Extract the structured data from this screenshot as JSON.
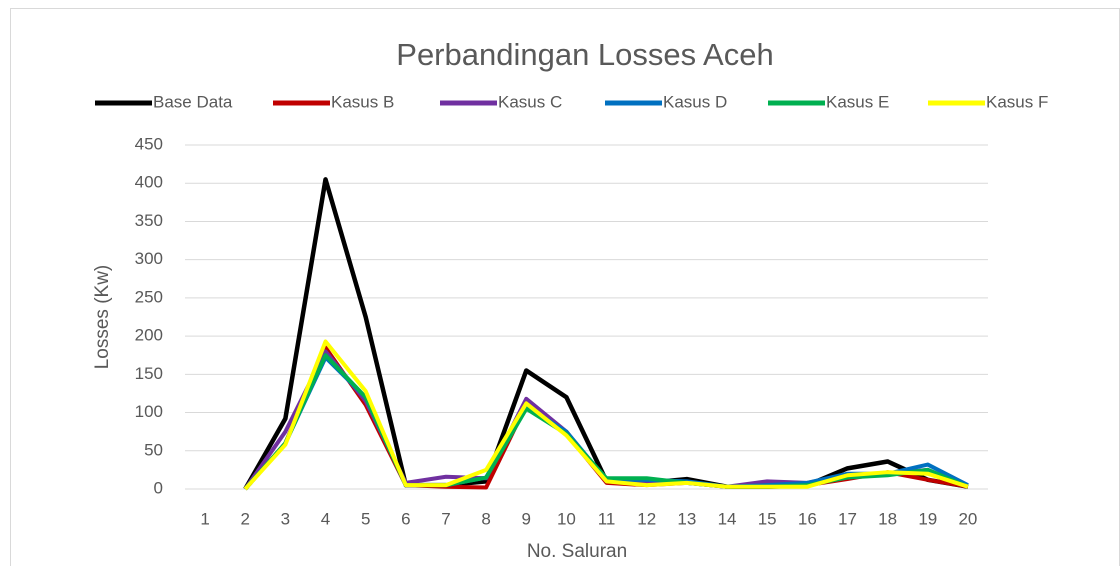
{
  "chart_data": {
    "type": "line",
    "title": "Perbandingan Losses Aceh",
    "x_label": "No. Saluran",
    "y_label": "Losses (Kw)",
    "categories": [
      1,
      2,
      3,
      4,
      5,
      6,
      7,
      8,
      9,
      10,
      11,
      12,
      13,
      14,
      15,
      16,
      17,
      18,
      19,
      20
    ],
    "series": [
      {
        "name": "Base Data",
        "color": "#000000",
        "values": [
          null,
          0,
          92,
          405,
          225,
          5,
          5,
          10,
          155,
          120,
          10,
          8,
          13,
          3,
          3,
          5,
          27,
          36,
          12,
          3
        ]
      },
      {
        "name": "Kasus B",
        "color": "#c00000",
        "values": [
          null,
          0,
          60,
          185,
          110,
          5,
          3,
          2,
          110,
          72,
          8,
          5,
          8,
          3,
          5,
          5,
          13,
          22,
          12,
          3
        ]
      },
      {
        "name": "Kasus C",
        "color": "#7030a0",
        "values": [
          null,
          0,
          75,
          180,
          115,
          8,
          16,
          14,
          118,
          75,
          10,
          8,
          8,
          3,
          10,
          8,
          18,
          20,
          25,
          3
        ]
      },
      {
        "name": "Kasus D",
        "color": "#0070c0",
        "values": [
          null,
          0,
          60,
          172,
          120,
          5,
          5,
          15,
          108,
          75,
          12,
          12,
          10,
          3,
          5,
          8,
          20,
          20,
          32,
          5
        ]
      },
      {
        "name": "Kasus E",
        "color": "#00b050",
        "values": [
          null,
          0,
          60,
          175,
          120,
          5,
          5,
          15,
          105,
          72,
          14,
          14,
          8,
          3,
          3,
          5,
          15,
          18,
          25,
          3
        ]
      },
      {
        "name": "Kasus F",
        "color": "#ffff00",
        "values": [
          null,
          0,
          58,
          193,
          128,
          5,
          5,
          25,
          112,
          70,
          10,
          5,
          8,
          3,
          3,
          3,
          18,
          22,
          20,
          3
        ]
      }
    ],
    "ylim": [
      0,
      450
    ],
    "yticks": [
      0,
      50,
      100,
      150,
      200,
      250,
      300,
      350,
      400,
      450
    ],
    "grid": true,
    "legend": "top"
  }
}
